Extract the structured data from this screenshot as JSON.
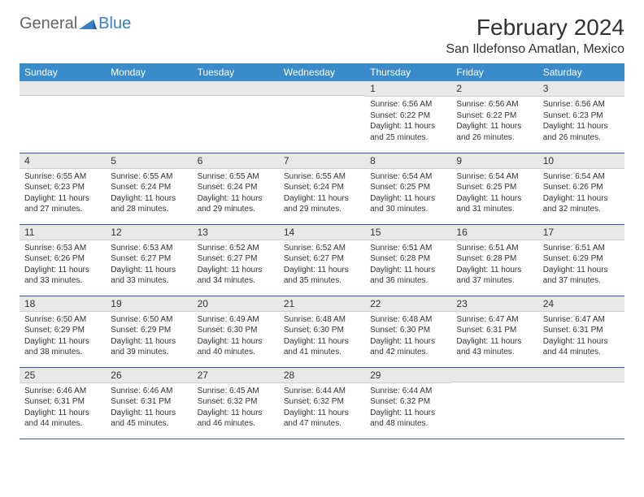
{
  "logo": {
    "text1": "General",
    "text2": "Blue"
  },
  "title": "February 2024",
  "location": "San Ildefonso Amatlan, Mexico",
  "colors": {
    "header_bg": "#3a8bc9",
    "header_fg": "#ffffff",
    "daynum_bg": "#e8e8e8",
    "border": "#2c5a8a",
    "logo_gray": "#666666",
    "logo_blue": "#3a7fc4"
  },
  "dayHeaders": [
    "Sunday",
    "Monday",
    "Tuesday",
    "Wednesday",
    "Thursday",
    "Friday",
    "Saturday"
  ],
  "weeks": [
    [
      {
        "n": "",
        "lines": []
      },
      {
        "n": "",
        "lines": []
      },
      {
        "n": "",
        "lines": []
      },
      {
        "n": "",
        "lines": []
      },
      {
        "n": "1",
        "lines": [
          "Sunrise: 6:56 AM",
          "Sunset: 6:22 PM",
          "Daylight: 11 hours and 25 minutes."
        ]
      },
      {
        "n": "2",
        "lines": [
          "Sunrise: 6:56 AM",
          "Sunset: 6:22 PM",
          "Daylight: 11 hours and 26 minutes."
        ]
      },
      {
        "n": "3",
        "lines": [
          "Sunrise: 6:56 AM",
          "Sunset: 6:23 PM",
          "Daylight: 11 hours and 26 minutes."
        ]
      }
    ],
    [
      {
        "n": "4",
        "lines": [
          "Sunrise: 6:55 AM",
          "Sunset: 6:23 PM",
          "Daylight: 11 hours and 27 minutes."
        ]
      },
      {
        "n": "5",
        "lines": [
          "Sunrise: 6:55 AM",
          "Sunset: 6:24 PM",
          "Daylight: 11 hours and 28 minutes."
        ]
      },
      {
        "n": "6",
        "lines": [
          "Sunrise: 6:55 AM",
          "Sunset: 6:24 PM",
          "Daylight: 11 hours and 29 minutes."
        ]
      },
      {
        "n": "7",
        "lines": [
          "Sunrise: 6:55 AM",
          "Sunset: 6:24 PM",
          "Daylight: 11 hours and 29 minutes."
        ]
      },
      {
        "n": "8",
        "lines": [
          "Sunrise: 6:54 AM",
          "Sunset: 6:25 PM",
          "Daylight: 11 hours and 30 minutes."
        ]
      },
      {
        "n": "9",
        "lines": [
          "Sunrise: 6:54 AM",
          "Sunset: 6:25 PM",
          "Daylight: 11 hours and 31 minutes."
        ]
      },
      {
        "n": "10",
        "lines": [
          "Sunrise: 6:54 AM",
          "Sunset: 6:26 PM",
          "Daylight: 11 hours and 32 minutes."
        ]
      }
    ],
    [
      {
        "n": "11",
        "lines": [
          "Sunrise: 6:53 AM",
          "Sunset: 6:26 PM",
          "Daylight: 11 hours and 33 minutes."
        ]
      },
      {
        "n": "12",
        "lines": [
          "Sunrise: 6:53 AM",
          "Sunset: 6:27 PM",
          "Daylight: 11 hours and 33 minutes."
        ]
      },
      {
        "n": "13",
        "lines": [
          "Sunrise: 6:52 AM",
          "Sunset: 6:27 PM",
          "Daylight: 11 hours and 34 minutes."
        ]
      },
      {
        "n": "14",
        "lines": [
          "Sunrise: 6:52 AM",
          "Sunset: 6:27 PM",
          "Daylight: 11 hours and 35 minutes."
        ]
      },
      {
        "n": "15",
        "lines": [
          "Sunrise: 6:51 AM",
          "Sunset: 6:28 PM",
          "Daylight: 11 hours and 36 minutes."
        ]
      },
      {
        "n": "16",
        "lines": [
          "Sunrise: 6:51 AM",
          "Sunset: 6:28 PM",
          "Daylight: 11 hours and 37 minutes."
        ]
      },
      {
        "n": "17",
        "lines": [
          "Sunrise: 6:51 AM",
          "Sunset: 6:29 PM",
          "Daylight: 11 hours and 37 minutes."
        ]
      }
    ],
    [
      {
        "n": "18",
        "lines": [
          "Sunrise: 6:50 AM",
          "Sunset: 6:29 PM",
          "Daylight: 11 hours and 38 minutes."
        ]
      },
      {
        "n": "19",
        "lines": [
          "Sunrise: 6:50 AM",
          "Sunset: 6:29 PM",
          "Daylight: 11 hours and 39 minutes."
        ]
      },
      {
        "n": "20",
        "lines": [
          "Sunrise: 6:49 AM",
          "Sunset: 6:30 PM",
          "Daylight: 11 hours and 40 minutes."
        ]
      },
      {
        "n": "21",
        "lines": [
          "Sunrise: 6:48 AM",
          "Sunset: 6:30 PM",
          "Daylight: 11 hours and 41 minutes."
        ]
      },
      {
        "n": "22",
        "lines": [
          "Sunrise: 6:48 AM",
          "Sunset: 6:30 PM",
          "Daylight: 11 hours and 42 minutes."
        ]
      },
      {
        "n": "23",
        "lines": [
          "Sunrise: 6:47 AM",
          "Sunset: 6:31 PM",
          "Daylight: 11 hours and 43 minutes."
        ]
      },
      {
        "n": "24",
        "lines": [
          "Sunrise: 6:47 AM",
          "Sunset: 6:31 PM",
          "Daylight: 11 hours and 44 minutes."
        ]
      }
    ],
    [
      {
        "n": "25",
        "lines": [
          "Sunrise: 6:46 AM",
          "Sunset: 6:31 PM",
          "Daylight: 11 hours and 44 minutes."
        ]
      },
      {
        "n": "26",
        "lines": [
          "Sunrise: 6:46 AM",
          "Sunset: 6:31 PM",
          "Daylight: 11 hours and 45 minutes."
        ]
      },
      {
        "n": "27",
        "lines": [
          "Sunrise: 6:45 AM",
          "Sunset: 6:32 PM",
          "Daylight: 11 hours and 46 minutes."
        ]
      },
      {
        "n": "28",
        "lines": [
          "Sunrise: 6:44 AM",
          "Sunset: 6:32 PM",
          "Daylight: 11 hours and 47 minutes."
        ]
      },
      {
        "n": "29",
        "lines": [
          "Sunrise: 6:44 AM",
          "Sunset: 6:32 PM",
          "Daylight: 11 hours and 48 minutes."
        ]
      },
      {
        "n": "",
        "lines": []
      },
      {
        "n": "",
        "lines": []
      }
    ]
  ]
}
